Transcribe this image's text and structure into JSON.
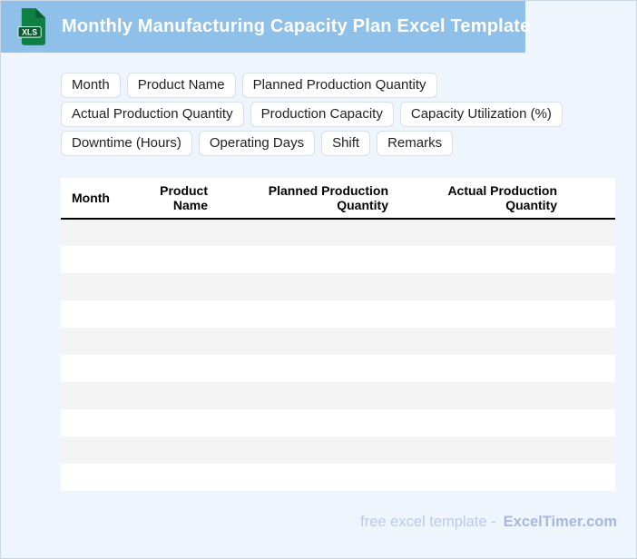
{
  "header": {
    "title": "Monthly Manufacturing Capacity Plan Excel Template",
    "file_icon_label": "XLS"
  },
  "chips": [
    "Month",
    "Product Name",
    "Planned Production Quantity",
    "Actual Production Quantity",
    "Production Capacity",
    "Capacity Utilization (%)",
    "Downtime (Hours)",
    "Operating Days",
    "Shift",
    "Remarks"
  ],
  "table": {
    "columns": [
      {
        "label": "Month",
        "align": "left"
      },
      {
        "label": "Product Name",
        "align": "right"
      },
      {
        "label": "Planned Production Quantity",
        "align": "right"
      },
      {
        "label": "Actual Production Quantity",
        "align": "right"
      }
    ],
    "empty_row_count": 10,
    "rows": []
  },
  "footer": {
    "text": "free excel template -",
    "brand": "ExcelTimer.com"
  },
  "colors": {
    "header_bg": "#8fc0e9",
    "page_bg": "#eef5fc",
    "page_border": "#cbd8e4",
    "icon_green": "#0f8044",
    "icon_band": "#0a5c31",
    "chip_border": "#d8dfe9",
    "chip_text": "#1f2023",
    "stripe": "#f5f4f5",
    "footer_text": "#bcc9ee",
    "footer_brand": "#a7b6e2"
  }
}
